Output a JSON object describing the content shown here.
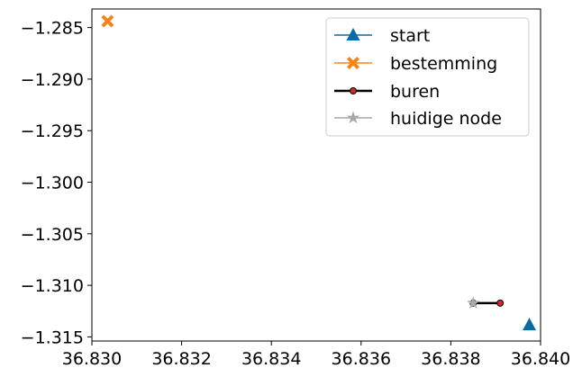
{
  "chart_data": {
    "type": "scatter",
    "title": "",
    "xlabel": "",
    "ylabel": "",
    "xlim": [
      36.83,
      36.84
    ],
    "ylim": [
      -1.3154,
      -1.2832
    ],
    "grid": false,
    "legend_position": "top-right",
    "x_ticks": [
      36.83,
      36.832,
      36.834,
      36.836,
      36.838,
      36.84
    ],
    "x_tick_labels": [
      "36.830",
      "36.832",
      "36.834",
      "36.836",
      "36.838",
      "36.840"
    ],
    "y_ticks": [
      -1.285,
      -1.29,
      -1.295,
      -1.3,
      -1.305,
      -1.31,
      -1.315
    ],
    "y_tick_labels": [
      "−1.285",
      "−1.290",
      "−1.295",
      "−1.300",
      "−1.305",
      "−1.310",
      "−1.315"
    ],
    "series": [
      {
        "name": "start",
        "marker": "triangle",
        "color": "#0a6ba3",
        "points": [
          {
            "x": 36.83975,
            "y": -1.31384
          }
        ]
      },
      {
        "name": "bestemming",
        "marker": "x-filled",
        "color": "#f58518",
        "points": [
          {
            "x": 36.83035,
            "y": -1.28438
          }
        ]
      },
      {
        "name": "buren",
        "marker": "circle-line",
        "color": "#000000",
        "marker_fill": "#d62728",
        "points": [
          {
            "x": 36.8385,
            "y": -1.31172
          },
          {
            "x": 36.8391,
            "y": -1.31172
          }
        ]
      },
      {
        "name": "huidige node",
        "marker": "star",
        "color": "#a9a9a9",
        "points": [
          {
            "x": 36.8385,
            "y": -1.31172
          }
        ]
      }
    ]
  }
}
